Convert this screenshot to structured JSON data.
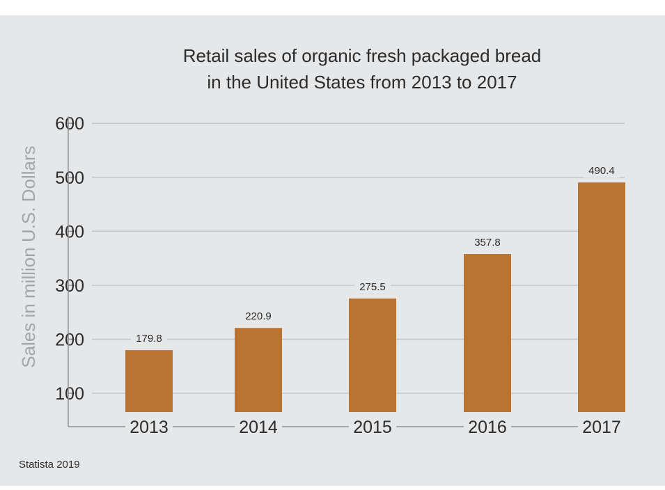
{
  "chart_data": {
    "type": "bar",
    "title_lines": [
      "Retail sales of organic fresh packaged bread",
      "in the United States from 2013 to 2017"
    ],
    "xlabel": "",
    "ylabel": "Sales in million U.S. Dollars",
    "categories": [
      "2013",
      "2014",
      "2015",
      "2016",
      "2017"
    ],
    "values": [
      179.8,
      220.9,
      275.5,
      357.8,
      490.4
    ],
    "value_labels": [
      "179.8",
      "220.9",
      "275.5",
      "357.8",
      "490.4"
    ],
    "yticks": [
      "100",
      "200",
      "300",
      "400",
      "500",
      "600"
    ],
    "ylim": [
      60,
      600
    ],
    "grid": true,
    "legend": "none",
    "bar_color": "#bb7333"
  },
  "source": "Statista 2019"
}
